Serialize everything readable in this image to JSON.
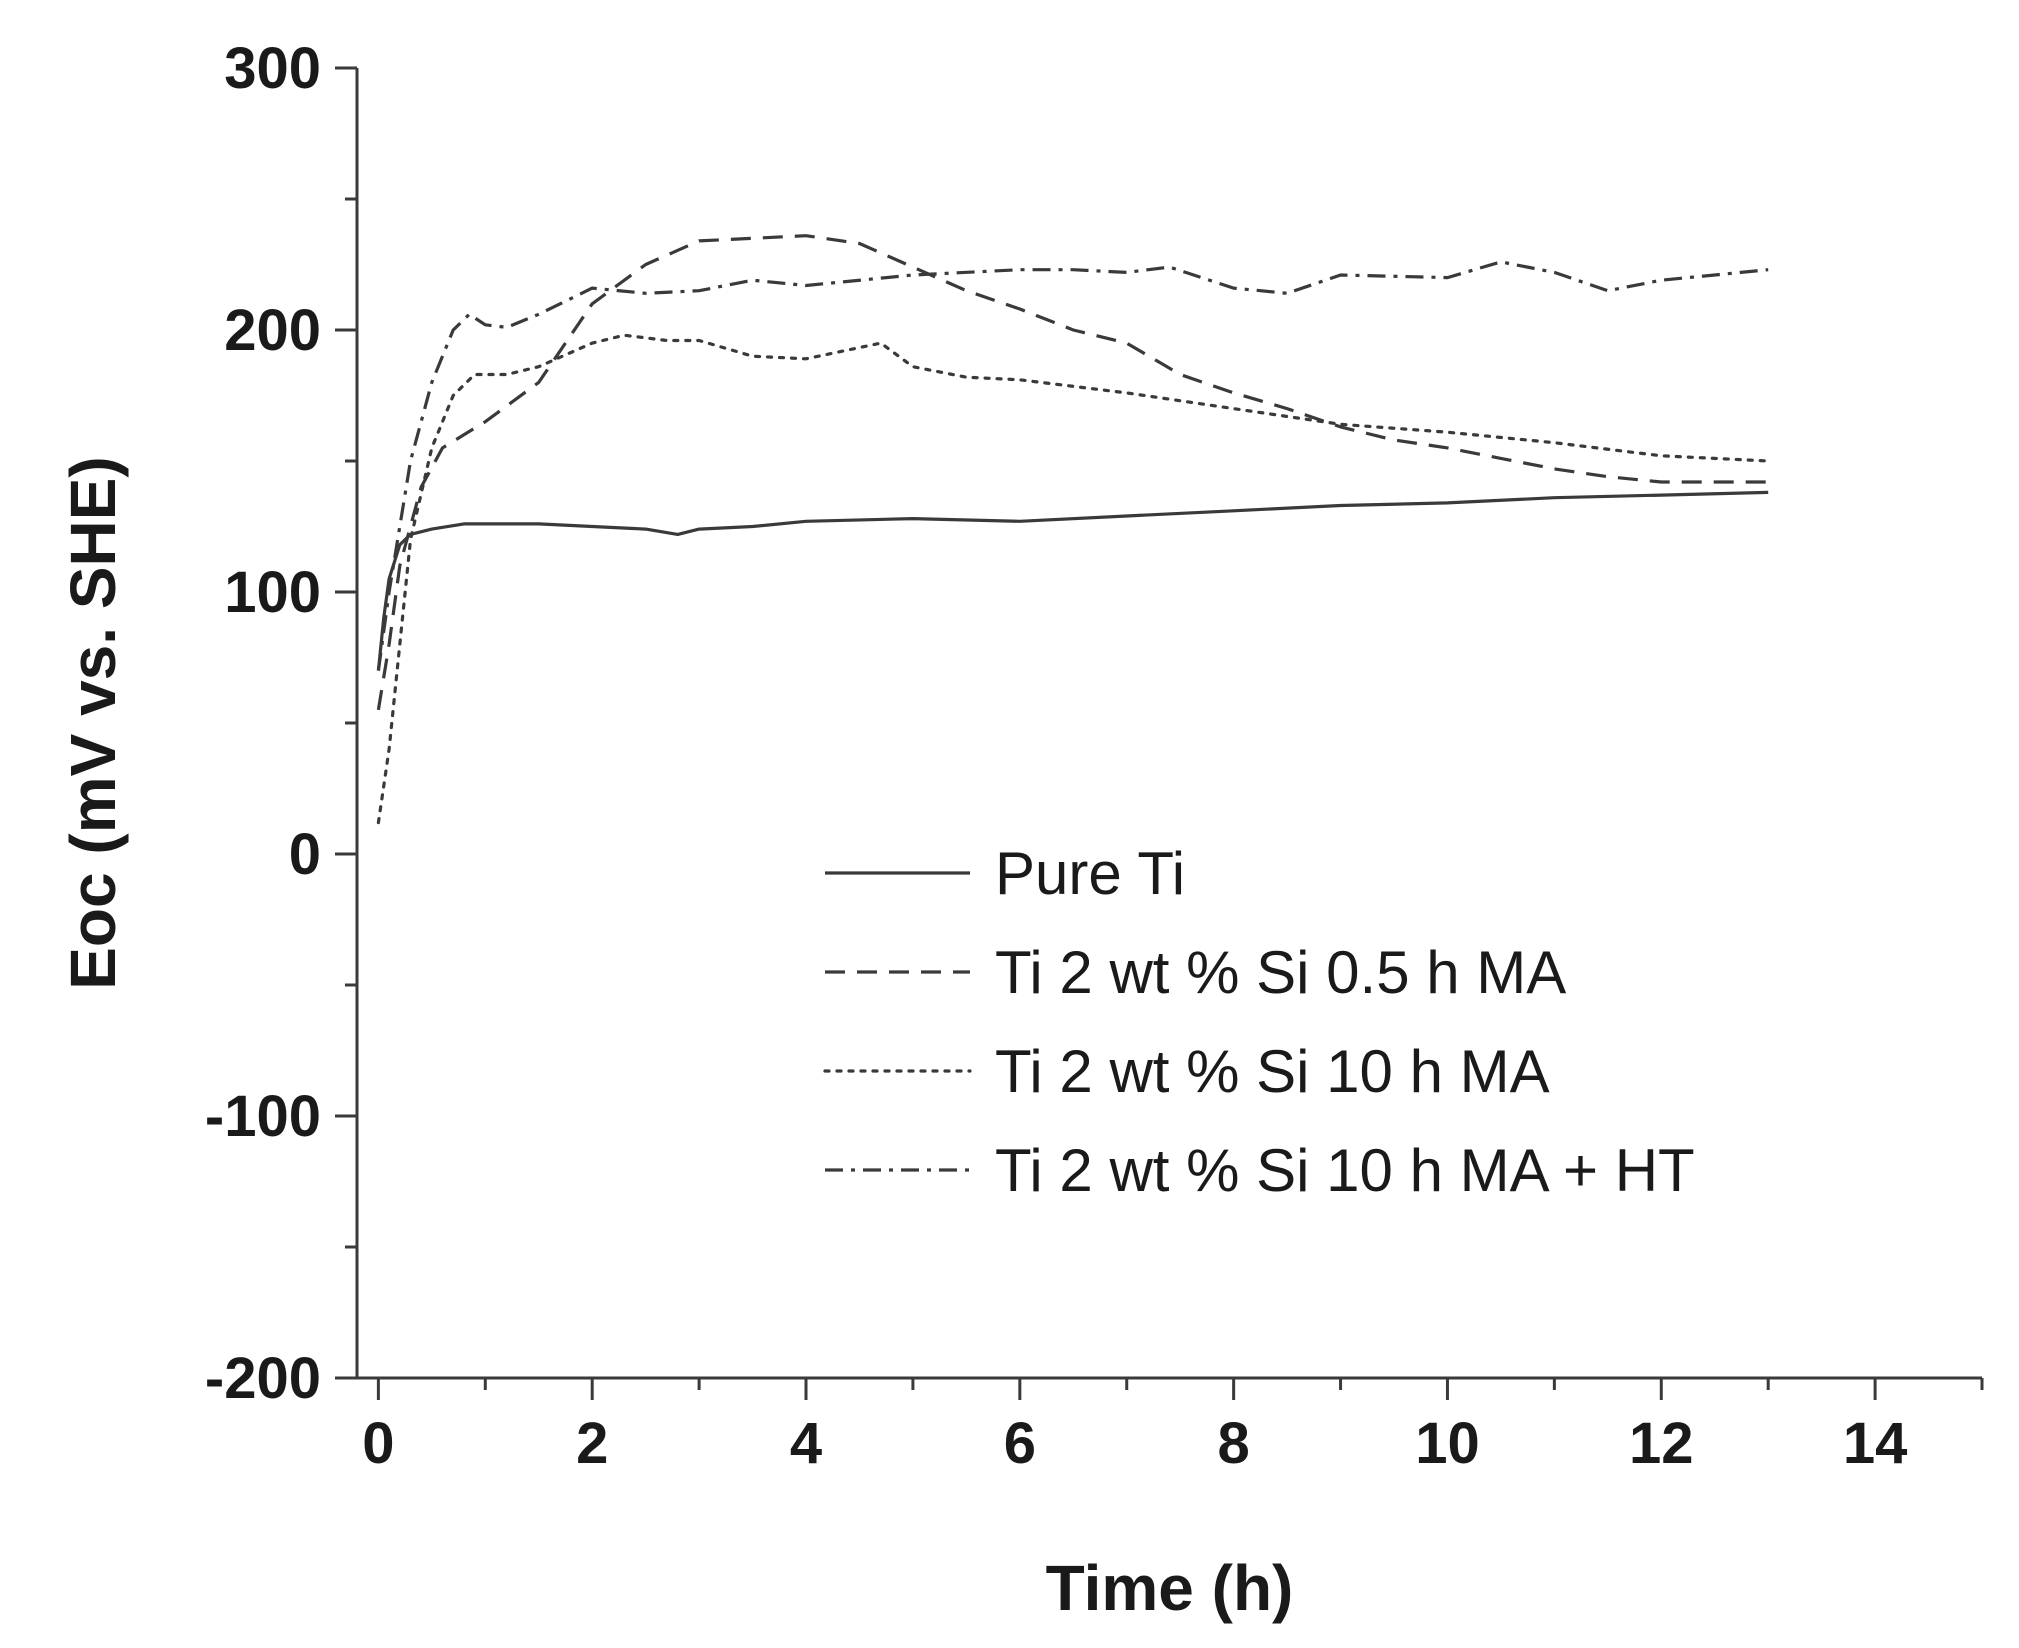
{
  "chart_data": {
    "type": "line",
    "title": "",
    "xlabel": "Time (h)",
    "ylabel": "Eoc (mV vs. SHE)",
    "xlim": [
      -0.2,
      15
    ],
    "ylim": [
      -200,
      300
    ],
    "xticks": [
      0,
      2,
      4,
      6,
      8,
      10,
      12,
      14
    ],
    "yticks": [
      -200,
      -100,
      0,
      100,
      200,
      300
    ],
    "xtick_labels": [
      "0",
      "2",
      "4",
      "6",
      "8",
      "10",
      "12",
      "14"
    ],
    "ytick_labels": [
      "-200",
      "-100",
      "0",
      "100",
      "200",
      "300"
    ],
    "legend_position": "center-right",
    "line_color": "#3a3a3a",
    "series": [
      {
        "name": "Pure Ti",
        "style": "solid",
        "x": [
          0,
          0.05,
          0.1,
          0.2,
          0.3,
          0.5,
          0.8,
          1.0,
          1.5,
          2.0,
          2.5,
          2.8,
          3.0,
          3.5,
          4.0,
          5.0,
          6.0,
          7.0,
          8.0,
          9.0,
          10.0,
          11.0,
          12.0,
          13.0
        ],
        "y": [
          70,
          90,
          105,
          118,
          122,
          124,
          126,
          126,
          126,
          125,
          124,
          122,
          124,
          125,
          127,
          128,
          127,
          129,
          131,
          133,
          134,
          136,
          137,
          138
        ]
      },
      {
        "name": "Ti 2 wt % Si 0.5 h MA",
        "style": "dashed",
        "x": [
          0,
          0.1,
          0.2,
          0.4,
          0.6,
          0.8,
          1.0,
          1.5,
          2.0,
          2.5,
          3.0,
          3.5,
          4.0,
          4.5,
          5.0,
          5.5,
          6.0,
          6.5,
          7.0,
          7.5,
          8.0,
          8.5,
          9.0,
          9.5,
          10.0,
          10.5,
          11.0,
          11.5,
          12.0,
          12.5,
          13.0
        ],
        "y": [
          55,
          80,
          110,
          140,
          155,
          160,
          165,
          180,
          210,
          225,
          234,
          235,
          236,
          233,
          224,
          215,
          208,
          200,
          195,
          183,
          176,
          170,
          163,
          158,
          155,
          151,
          147,
          144,
          142,
          142,
          142
        ]
      },
      {
        "name": "Ti 2 wt % Si 10 h MA",
        "style": "dotted",
        "x": [
          0,
          0.1,
          0.2,
          0.3,
          0.5,
          0.7,
          0.9,
          1.2,
          1.5,
          2.0,
          2.3,
          2.7,
          3.0,
          3.5,
          4.0,
          4.7,
          5.0,
          5.5,
          6.0,
          7.0,
          8.0,
          9.0,
          10.0,
          11.0,
          12.0,
          13.0
        ],
        "y": [
          12,
          40,
          80,
          120,
          155,
          175,
          183,
          183,
          186,
          195,
          198,
          196,
          196,
          190,
          189,
          195,
          186,
          182,
          181,
          176,
          170,
          164,
          161,
          157,
          152,
          150
        ]
      },
      {
        "name": "Ti 2 wt % Si 10 h MA + HT",
        "style": "dashdot",
        "x": [
          0,
          0.1,
          0.2,
          0.3,
          0.5,
          0.7,
          0.85,
          1.0,
          1.2,
          1.5,
          2.0,
          2.5,
          3.0,
          3.5,
          4.0,
          5.0,
          6.0,
          6.5,
          7.0,
          7.4,
          8.0,
          8.5,
          9.0,
          10.0,
          10.5,
          11.0,
          11.5,
          12.0,
          12.5,
          13.0
        ],
        "y": [
          70,
          100,
          125,
          150,
          180,
          200,
          206,
          202,
          201,
          206,
          216,
          214,
          215,
          219,
          217,
          221,
          223,
          223,
          222,
          224,
          216,
          214,
          221,
          220,
          226,
          222,
          215,
          219,
          221,
          223
        ]
      }
    ]
  }
}
